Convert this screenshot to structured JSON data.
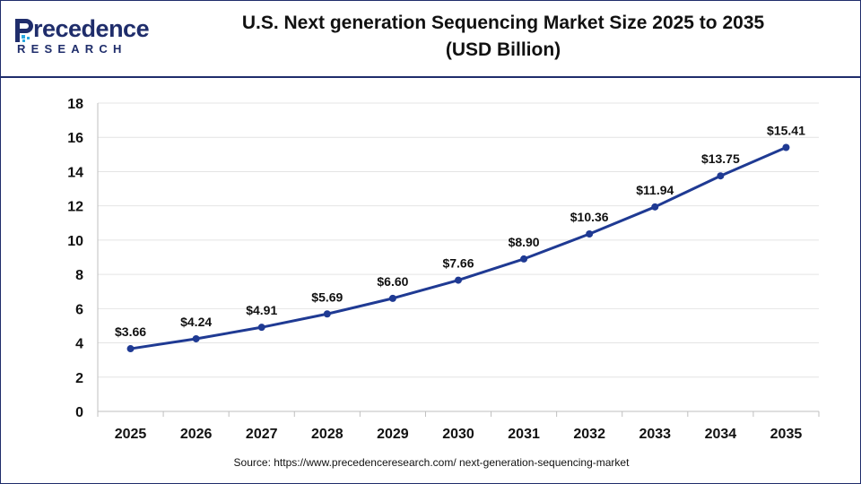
{
  "brand": {
    "logo_name": "Precedence",
    "logo_word": "recedence",
    "logo_sub": "RESEARCH",
    "logo_icon": "precedence-p-logo-icon",
    "color_primary": "#1f2d6b",
    "color_accent": "#2aa8e0"
  },
  "chart_data": {
    "type": "line",
    "title": "U.S. Next generation Sequencing Market Size 2025 to 2035",
    "subtitle": "(USD Billion)",
    "xlabel": "",
    "ylabel": "",
    "categories": [
      "2025",
      "2026",
      "2027",
      "2028",
      "2029",
      "2030",
      "2031",
      "2032",
      "2033",
      "2034",
      "2035"
    ],
    "series": [
      {
        "values": [
          3.66,
          4.24,
          4.91,
          5.69,
          6.6,
          7.66,
          8.9,
          10.36,
          11.94,
          13.75,
          15.41
        ],
        "labels": [
          "$3.66",
          "$4.24",
          "$4.91",
          "$5.69",
          "$6.60",
          "$7.66",
          "$8.90",
          "$10.36",
          "$11.94",
          "$13.75",
          "$15.41"
        ],
        "color": "#1f3a93"
      }
    ],
    "ylim": [
      0,
      18
    ],
    "yticks": [
      0,
      2,
      4,
      6,
      8,
      10,
      12,
      14,
      16,
      18
    ],
    "grid": true,
    "legend": "none"
  },
  "source": "Source: https://www.precedenceresearch.com/ next-generation-sequencing-market"
}
